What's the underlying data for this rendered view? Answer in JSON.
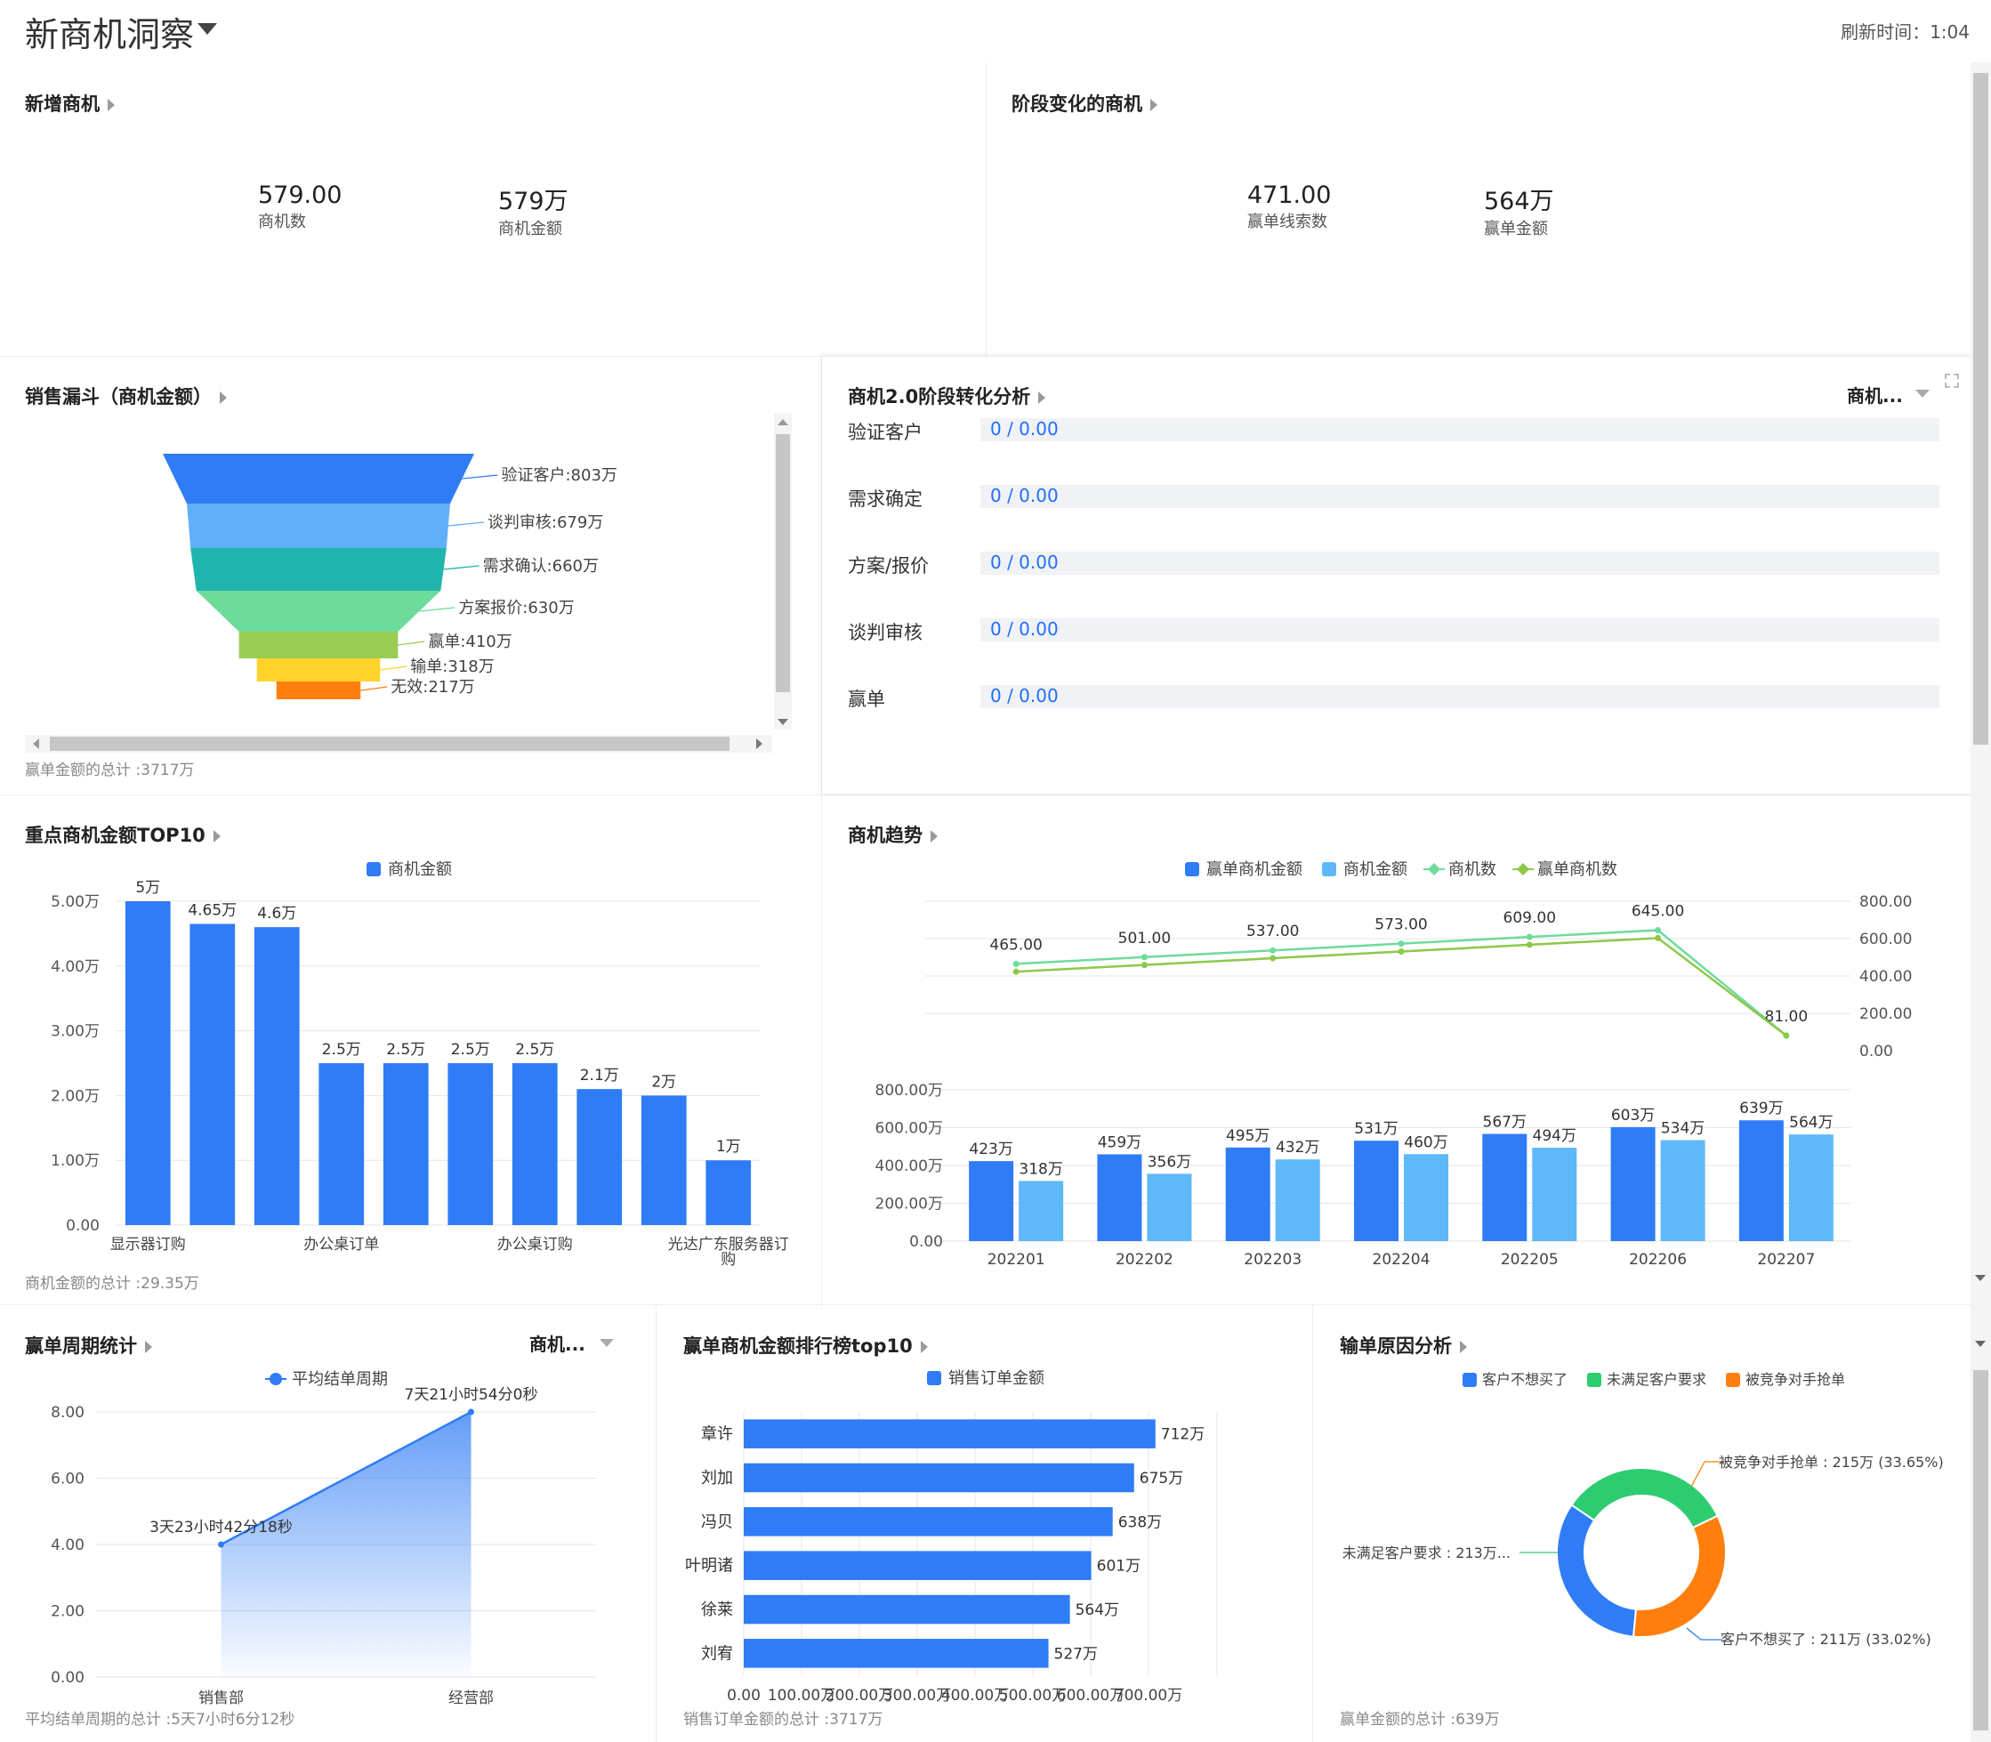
{
  "header": {
    "title": "新商机洞察",
    "refresh_label": "刷新时间：1:04"
  },
  "new_opps": {
    "title": "新增商机",
    "kpis": [
      {
        "value": "579.00",
        "label": "商机数"
      },
      {
        "value": "579万",
        "label": "商机金额"
      }
    ]
  },
  "stage_change": {
    "title": "阶段变化的商机",
    "kpis": [
      {
        "value": "471.00",
        "label": "赢单线索数"
      },
      {
        "value": "564万",
        "label": "赢单金额"
      }
    ]
  },
  "funnel": {
    "title": "销售漏斗（商机金额）",
    "footer": "赢单金额的总计 :3717万",
    "colors": [
      "#2f7cf6",
      "#5fb0f8",
      "#1fb5ac",
      "#6ddb9c",
      "#99cc55",
      "#ffd42a",
      "#ff7f0e"
    ]
  },
  "stage_analysis": {
    "title": "商机2.0阶段转化分析",
    "dropdown": "商机...",
    "rows": [
      {
        "label": "验证客户",
        "value": "0 / 0.00"
      },
      {
        "label": "需求确定",
        "value": "0 / 0.00"
      },
      {
        "label": "方案/报价",
        "value": "0 / 0.00"
      },
      {
        "label": "谈判审核",
        "value": "0 / 0.00"
      },
      {
        "label": "赢单",
        "value": "0 / 0.00"
      }
    ]
  },
  "top10": {
    "title": "重点商机金额TOP10",
    "footer": "商机金额的总计 :29.35万"
  },
  "trend": {
    "title": "商机趋势"
  },
  "cycle": {
    "title": "赢单周期统计",
    "dropdown": "商机...",
    "footer": "平均结单周期的总计 :5天7小时6分12秒"
  },
  "ranking": {
    "title": "赢单商机金额排行榜top10",
    "footer": "销售订单金额的总计 :3717万"
  },
  "loss": {
    "title": "输单原因分析",
    "footer": "赢单金额的总计 :639万"
  },
  "chart_data": [
    {
      "id": "funnel",
      "type": "funnel",
      "categories": [
        "验证客户",
        "谈判审核",
        "需求确认",
        "方案报价",
        "赢单",
        "输单",
        "无效"
      ],
      "values": [
        803,
        679,
        660,
        630,
        410,
        318,
        217
      ],
      "labels": [
        "验证客户:803万",
        "谈判审核:679万",
        "需求确认:660万",
        "方案报价:630万",
        "赢单:410万",
        "输单:318万",
        "无效:217万"
      ]
    },
    {
      "id": "top10",
      "type": "bar",
      "legend": [
        "商机金额"
      ],
      "values": [
        5,
        4.65,
        4.6,
        2.5,
        2.5,
        2.5,
        2.5,
        2.1,
        2,
        1
      ],
      "data_labels": [
        "5万",
        "4.65万",
        "4.6万",
        "2.5万",
        "2.5万",
        "2.5万",
        "2.5万",
        "2.1万",
        "2万",
        "1万"
      ],
      "x_tick_labels": [
        "显示器订购",
        "办公桌订单",
        "办公桌订购",
        "光达广东服务器订",
        "购"
      ],
      "y_ticks": [
        "0.00",
        "1.00万",
        "2.00万",
        "3.00万",
        "4.00万",
        "5.00万"
      ],
      "ylim": [
        0,
        5
      ],
      "color": "#2f7cf6"
    },
    {
      "id": "trend_lines",
      "type": "line",
      "categories": [
        "202201",
        "202202",
        "202203",
        "202204",
        "202205",
        "202206",
        "202207"
      ],
      "legend": [
        "赢单商机金额",
        "商机金额",
        "商机数",
        "赢单商机数"
      ],
      "legend_colors": [
        "#2f7cf6",
        "#5fb8f8",
        "#6ddb9c",
        "#8dc84a"
      ],
      "series": [
        {
          "name": "商机数",
          "values": [
            465,
            501,
            537,
            573,
            609,
            645,
            81
          ],
          "color": "#6ddb9c",
          "labels": [
            "465.00",
            "501.00",
            "537.00",
            "573.00",
            "609.00",
            "645.00",
            "81.00"
          ]
        },
        {
          "name": "赢单商机数",
          "values": [
            423,
            459,
            495,
            531,
            567,
            603,
            81
          ],
          "color": "#8dc84a"
        }
      ],
      "y_ticks": [
        "0.00",
        "200.00",
        "400.00",
        "600.00",
        "800.00"
      ],
      "ylim": [
        0,
        800
      ]
    },
    {
      "id": "trend_bars",
      "type": "bar",
      "categories": [
        "202201",
        "202202",
        "202203",
        "202204",
        "202205",
        "202206",
        "202207"
      ],
      "series": [
        {
          "name": "赢单商机金额",
          "values": [
            423,
            459,
            495,
            531,
            567,
            603,
            639
          ],
          "color": "#2f7cf6",
          "labels": [
            "423万",
            "459万",
            "495万",
            "531万",
            "567万",
            "603万",
            "639万"
          ]
        },
        {
          "name": "商机金额",
          "values": [
            318,
            356,
            432,
            460,
            494,
            534,
            564
          ],
          "color": "#5fb8f8",
          "labels": [
            "318万",
            "356万",
            "432万",
            "460万",
            "494万",
            "534万",
            "564万"
          ]
        }
      ],
      "y_ticks": [
        "0.00",
        "200.00万",
        "400.00万",
        "600.00万",
        "800.00万"
      ],
      "ylim": [
        0,
        800
      ]
    },
    {
      "id": "cycle",
      "type": "area",
      "legend": [
        "平均结单周期"
      ],
      "categories": [
        "销售部",
        "经营部"
      ],
      "values": [
        4,
        8
      ],
      "data_labels": [
        "3天23小时42分18秒",
        "7天21小时54分0秒"
      ],
      "y_ticks": [
        "0.00",
        "2.00",
        "4.00",
        "6.00",
        "8.00"
      ],
      "ylim": [
        0,
        8
      ],
      "color": "#2f7cf6"
    },
    {
      "id": "ranking",
      "type": "bar",
      "orientation": "horizontal",
      "legend": [
        "销售订单金额"
      ],
      "categories": [
        "章许",
        "刘加",
        "冯贝",
        "叶明诸",
        "徐莱",
        "刘宥"
      ],
      "values": [
        712,
        675,
        638,
        601,
        564,
        527
      ],
      "data_labels": [
        "712万",
        "675万",
        "638万",
        "601万",
        "564万",
        "527万"
      ],
      "x_ticks": [
        "0.00",
        "100.00万",
        "200.00万",
        "300.00万",
        "400.00万",
        "500.00万",
        "600.00万",
        "700.00万"
      ],
      "xlim": [
        0,
        800
      ],
      "color": "#2f7cf6"
    },
    {
      "id": "loss",
      "type": "pie",
      "legend": [
        "客户不想买了",
        "未满足客户要求",
        "被竞争对手抢单"
      ],
      "values": [
        211,
        213,
        215
      ],
      "percents": [
        33.02,
        33.33,
        33.65
      ],
      "colors": [
        "#2f7cf6",
        "#2ecc71",
        "#ff7f0e"
      ],
      "data_labels": [
        "客户不想买了 : 211万 (33.02%)",
        "未满足客户要求 : 213万...",
        "被竞争对手抢单 : 215万 (33.65%)"
      ]
    }
  ]
}
